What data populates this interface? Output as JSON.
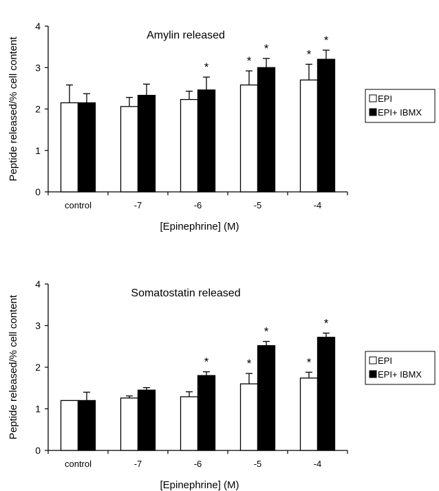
{
  "chart_data": [
    {
      "type": "bar",
      "title": "Amylin released",
      "xlabel": "[Epinephrine] (M)",
      "ylabel": "Peptide released/% cell content",
      "ylim": [
        0,
        4
      ],
      "yticks": [
        "0",
        "1",
        "2",
        "3",
        "4"
      ],
      "categories": [
        "control",
        "-7",
        "-6",
        "-5",
        "-4"
      ],
      "series": [
        {
          "name": "EPI",
          "color": "#ffffff",
          "values": [
            2.15,
            2.06,
            2.23,
            2.58,
            2.7
          ],
          "errors": [
            0.43,
            0.22,
            0.2,
            0.34,
            0.38
          ],
          "significant": [
            false,
            false,
            false,
            true,
            true
          ]
        },
        {
          "name": "EPI+ IBMX",
          "color": "#000000",
          "values": [
            2.15,
            2.33,
            2.46,
            3.0,
            3.2
          ],
          "errors": [
            0.22,
            0.27,
            0.31,
            0.22,
            0.22
          ],
          "significant": [
            false,
            false,
            true,
            true,
            true
          ]
        }
      ],
      "significance_marker": "*",
      "legend_position": "right"
    },
    {
      "type": "bar",
      "title": "Somatostatin released",
      "xlabel": "[Epinephrine] (M)",
      "ylabel": "Peptide released/% cell content",
      "ylim": [
        0,
        4
      ],
      "yticks": [
        "0",
        "1",
        "2",
        "3",
        "4"
      ],
      "categories": [
        "control",
        "-7",
        "-6",
        "-5",
        "-4"
      ],
      "series": [
        {
          "name": "EPI",
          "color": "#ffffff",
          "values": [
            1.2,
            1.26,
            1.29,
            1.6,
            1.74
          ],
          "errors": [
            0.0,
            0.05,
            0.12,
            0.25,
            0.14
          ],
          "significant": [
            false,
            false,
            false,
            true,
            true
          ]
        },
        {
          "name": "EPI+ IBMX",
          "color": "#000000",
          "values": [
            1.2,
            1.45,
            1.8,
            2.52,
            2.72
          ],
          "errors": [
            0.2,
            0.06,
            0.09,
            0.1,
            0.1
          ],
          "significant": [
            false,
            false,
            true,
            true,
            true
          ]
        }
      ],
      "significance_marker": "*",
      "legend_position": "right"
    }
  ]
}
